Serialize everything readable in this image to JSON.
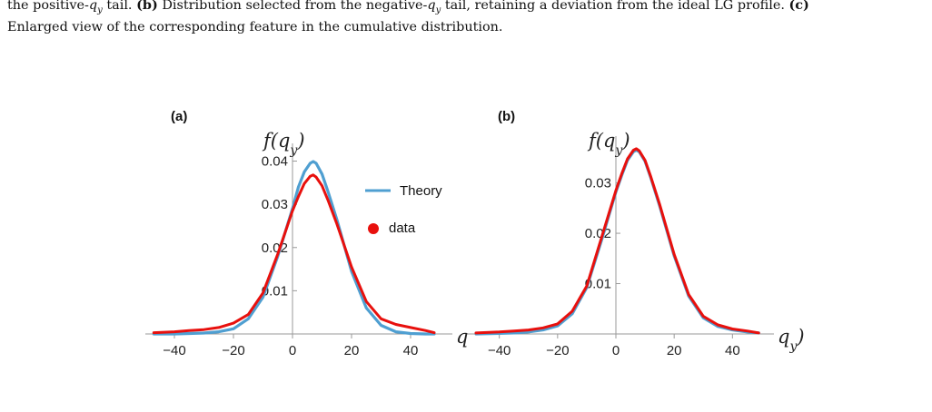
{
  "caption": {
    "line1_pre": "the positive-",
    "line1_var1": "q",
    "line1_sub1": "y",
    "line1_mid1": " tail. ",
    "label_b": "(b)",
    "line1_mid2": " Distribution selected from the negative-",
    "line1_var2": "q",
    "line1_sub2": "y",
    "line1_mid3": " tail, retaining a deviation from the ideal LG profile. ",
    "label_c": "(c)",
    "line2": "Enlarged view of the corresponding feature in the cumulative distribution."
  },
  "colors": {
    "theory": "#4f9fd1",
    "data": "#e8100d",
    "axis": "#9a9a9a"
  },
  "chart_data": [
    {
      "panel": "(a)",
      "type": "line",
      "ylabel": "f(q_y)",
      "y_ticks": [
        "0.01",
        "0.02",
        "0.03",
        "0.04"
      ],
      "x_ticks": [
        "-40",
        "-20",
        "0",
        "20",
        "40"
      ],
      "xlim": [
        -50,
        50
      ],
      "ylim": [
        0,
        0.042
      ],
      "legend": {
        "placement": "right",
        "entries": [
          "Theory",
          "data"
        ]
      },
      "series": [
        {
          "name": "Theory",
          "style": "line",
          "x": [
            -47,
            -40,
            -35,
            -30,
            -25,
            -20,
            -15,
            -10,
            -5,
            0,
            2,
            4,
            6,
            7,
            8,
            10,
            12,
            15,
            20,
            25,
            30,
            35,
            40,
            45,
            48
          ],
          "y": [
            0,
            0,
            0.0001,
            0.0002,
            0.0005,
            0.0012,
            0.0035,
            0.0085,
            0.018,
            0.029,
            0.034,
            0.0375,
            0.0395,
            0.0399,
            0.0395,
            0.037,
            0.033,
            0.0265,
            0.0145,
            0.006,
            0.002,
            0.0005,
            0.0001,
            0,
            0
          ]
        },
        {
          "name": "data",
          "style": "line",
          "x": [
            -47,
            -40,
            -35,
            -30,
            -25,
            -20,
            -15,
            -10,
            -5,
            0,
            2,
            4,
            6,
            7,
            8,
            10,
            12,
            15,
            20,
            25,
            30,
            35,
            40,
            45,
            48
          ],
          "y": [
            0.0003,
            0.0005,
            0.0008,
            0.001,
            0.0015,
            0.0025,
            0.0045,
            0.0095,
            0.0185,
            0.0285,
            0.0318,
            0.0348,
            0.0365,
            0.0368,
            0.0363,
            0.0343,
            0.031,
            0.0255,
            0.0155,
            0.0075,
            0.0035,
            0.0022,
            0.0015,
            0.0008,
            0.0003
          ]
        }
      ]
    },
    {
      "panel": "(b)",
      "type": "line",
      "ylabel": "f(q_y)",
      "xlabel": "q_y",
      "y_ticks": [
        "0.01",
        "0.02",
        "0.03"
      ],
      "x_ticks": [
        "-40",
        "-20",
        "0",
        "20",
        "40"
      ],
      "xlim": [
        -50,
        50
      ],
      "ylim": [
        0,
        0.0375
      ],
      "series": [
        {
          "name": "Theory",
          "style": "line",
          "x": [
            -48,
            -40,
            -35,
            -30,
            -25,
            -20,
            -15,
            -10,
            -5,
            0,
            2,
            4,
            6,
            7,
            8,
            10,
            12,
            15,
            20,
            25,
            30,
            35,
            40,
            45,
            49
          ],
          "y": [
            0,
            0.0001,
            0.0002,
            0.0004,
            0.0008,
            0.0016,
            0.004,
            0.0092,
            0.0185,
            0.0282,
            0.0315,
            0.0345,
            0.0362,
            0.0365,
            0.0362,
            0.0343,
            0.031,
            0.0255,
            0.0155,
            0.0075,
            0.0032,
            0.0015,
            0.0008,
            0.0004,
            0.0002
          ]
        },
        {
          "name": "data",
          "style": "line",
          "x": [
            -48,
            -40,
            -35,
            -30,
            -25,
            -20,
            -15,
            -10,
            -5,
            0,
            2,
            4,
            6,
            7,
            8,
            10,
            12,
            15,
            20,
            25,
            30,
            35,
            40,
            45,
            49
          ],
          "y": [
            0.0002,
            0.0004,
            0.0006,
            0.0008,
            0.0012,
            0.002,
            0.0045,
            0.0095,
            0.019,
            0.0285,
            0.0318,
            0.0348,
            0.0365,
            0.0368,
            0.0364,
            0.0345,
            0.0312,
            0.0258,
            0.0158,
            0.0078,
            0.0035,
            0.0018,
            0.001,
            0.0006,
            0.0002
          ]
        }
      ]
    }
  ],
  "cut_label": "q"
}
